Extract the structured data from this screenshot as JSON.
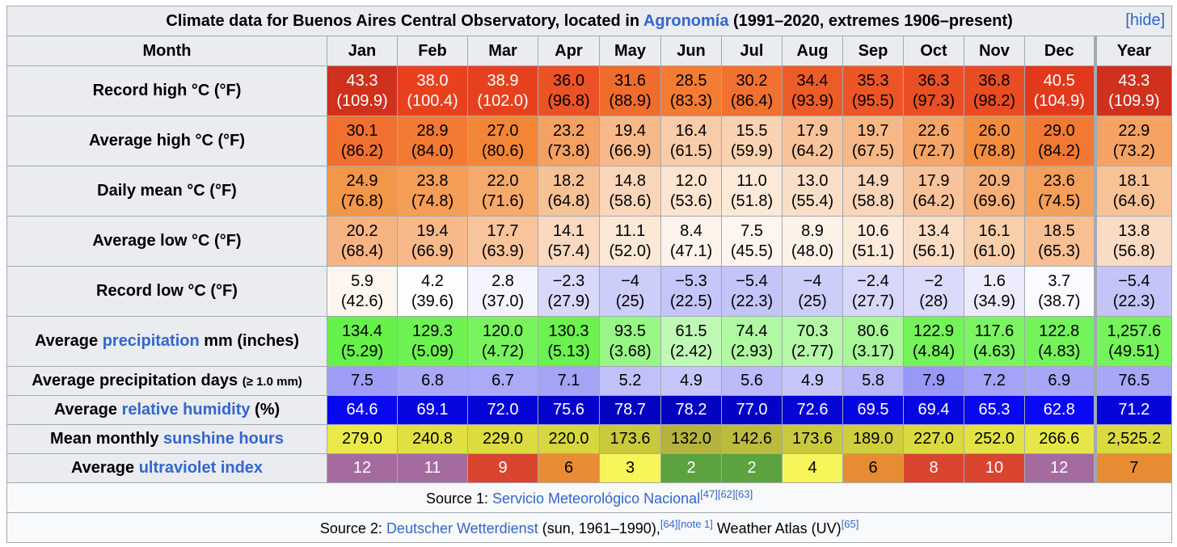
{
  "caption": {
    "text_before": "Climate data for Buenos Aires Central Observatory, located in ",
    "link": "Agronomía",
    "text_after": " (1991–2020, extremes 1906–present)",
    "hide": "[hide]"
  },
  "header": {
    "label": "Month",
    "months": [
      "Jan",
      "Feb",
      "Mar",
      "Apr",
      "May",
      "Jun",
      "Jul",
      "Aug",
      "Sep",
      "Oct",
      "Nov",
      "Dec"
    ],
    "year": "Year"
  },
  "rows": [
    {
      "id": "record-high",
      "label_pre": "Record high °C (°F)",
      "label_link": "",
      "label_post": "",
      "label_small": "",
      "cells": [
        {
          "c": "43.3",
          "f": "(109.9)",
          "bg": "#d0311c",
          "fg": "#ffffff"
        },
        {
          "c": "38.0",
          "f": "(100.4)",
          "bg": "#e9401e",
          "fg": "#ffffff"
        },
        {
          "c": "38.9",
          "f": "(102.0)",
          "bg": "#e6411e",
          "fg": "#ffffff"
        },
        {
          "c": "36.0",
          "f": "(96.8)",
          "bg": "#eb5225",
          "fg": "#000000"
        },
        {
          "c": "31.6",
          "f": "(88.9)",
          "bg": "#f06c2c",
          "fg": "#000000"
        },
        {
          "c": "28.5",
          "f": "(83.3)",
          "bg": "#f27c33",
          "fg": "#000000"
        },
        {
          "c": "30.2",
          "f": "(86.4)",
          "bg": "#f07130",
          "fg": "#000000"
        },
        {
          "c": "34.4",
          "f": "(93.9)",
          "bg": "#ec5c27",
          "fg": "#000000"
        },
        {
          "c": "35.3",
          "f": "(95.5)",
          "bg": "#ec5626",
          "fg": "#000000"
        },
        {
          "c": "36.3",
          "f": "(97.3)",
          "bg": "#ea4f24",
          "fg": "#000000"
        },
        {
          "c": "36.8",
          "f": "(98.2)",
          "bg": "#e94c23",
          "fg": "#000000"
        },
        {
          "c": "40.5",
          "f": "(104.9)",
          "bg": "#e2381c",
          "fg": "#ffffff"
        },
        {
          "c": "43.3",
          "f": "(109.9)",
          "bg": "#d0311c",
          "fg": "#ffffff"
        }
      ]
    },
    {
      "id": "average-high",
      "label_pre": "Average high °C (°F)",
      "label_link": "",
      "label_post": "",
      "label_small": "",
      "cells": [
        {
          "c": "30.1",
          "f": "(86.2)",
          "bg": "#f07030",
          "fg": "#000000"
        },
        {
          "c": "28.9",
          "f": "(84.0)",
          "bg": "#f27a33",
          "fg": "#000000"
        },
        {
          "c": "27.0",
          "f": "(80.6)",
          "bg": "#f28636",
          "fg": "#000000"
        },
        {
          "c": "23.2",
          "f": "(73.8)",
          "bg": "#f4a162",
          "fg": "#000000"
        },
        {
          "c": "19.4",
          "f": "(66.9)",
          "bg": "#f7b98a",
          "fg": "#000000"
        },
        {
          "c": "16.4",
          "f": "(61.5)",
          "bg": "#f8cca8",
          "fg": "#000000"
        },
        {
          "c": "15.5",
          "f": "(59.9)",
          "bg": "#f9d2b2",
          "fg": "#000000"
        },
        {
          "c": "17.9",
          "f": "(64.2)",
          "bg": "#f8c39a",
          "fg": "#000000"
        },
        {
          "c": "19.7",
          "f": "(67.5)",
          "bg": "#f7b887",
          "fg": "#000000"
        },
        {
          "c": "22.6",
          "f": "(72.7)",
          "bg": "#f5a567",
          "fg": "#000000"
        },
        {
          "c": "26.0",
          "f": "(78.8)",
          "bg": "#f38d3f",
          "fg": "#000000"
        },
        {
          "c": "29.0",
          "f": "(84.2)",
          "bg": "#f27933",
          "fg": "#000000"
        },
        {
          "c": "22.9",
          "f": "(73.2)",
          "bg": "#f5a365",
          "fg": "#000000"
        }
      ]
    },
    {
      "id": "daily-mean",
      "label_pre": "Daily mean °C (°F)",
      "label_link": "",
      "label_post": "",
      "label_small": "",
      "cells": [
        {
          "c": "24.9",
          "f": "(76.8)",
          "bg": "#f29648",
          "fg": "#000000"
        },
        {
          "c": "23.8",
          "f": "(74.8)",
          "bg": "#f49e58",
          "fg": "#000000"
        },
        {
          "c": "22.0",
          "f": "(71.6)",
          "bg": "#f5aa6c",
          "fg": "#000000"
        },
        {
          "c": "18.2",
          "f": "(64.8)",
          "bg": "#f7c196",
          "fg": "#000000"
        },
        {
          "c": "14.8",
          "f": "(58.6)",
          "bg": "#f9d6ba",
          "fg": "#000000"
        },
        {
          "c": "12.0",
          "f": "(53.6)",
          "bg": "#fbe4d0",
          "fg": "#000000"
        },
        {
          "c": "11.0",
          "f": "(51.8)",
          "bg": "#fce9d8",
          "fg": "#000000"
        },
        {
          "c": "13.0",
          "f": "(55.4)",
          "bg": "#fadfc8",
          "fg": "#000000"
        },
        {
          "c": "14.9",
          "f": "(58.8)",
          "bg": "#f9d5b9",
          "fg": "#000000"
        },
        {
          "c": "17.9",
          "f": "(64.2)",
          "bg": "#f8c39a",
          "fg": "#000000"
        },
        {
          "c": "20.9",
          "f": "(69.6)",
          "bg": "#f6b07a",
          "fg": "#000000"
        },
        {
          "c": "23.6",
          "f": "(74.5)",
          "bg": "#f49f5a",
          "fg": "#000000"
        },
        {
          "c": "18.1",
          "f": "(64.6)",
          "bg": "#f8c297",
          "fg": "#000000"
        }
      ]
    },
    {
      "id": "average-low",
      "label_pre": "Average low °C (°F)",
      "label_link": "",
      "label_post": "",
      "label_small": "",
      "cells": [
        {
          "c": "20.2",
          "f": "(68.4)",
          "bg": "#f6b482",
          "fg": "#000000"
        },
        {
          "c": "19.4",
          "f": "(66.9)",
          "bg": "#f7b98a",
          "fg": "#000000"
        },
        {
          "c": "17.7",
          "f": "(63.9)",
          "bg": "#f8c49c",
          "fg": "#000000"
        },
        {
          "c": "14.1",
          "f": "(57.4)",
          "bg": "#fad9c0",
          "fg": "#000000"
        },
        {
          "c": "11.1",
          "f": "(52.0)",
          "bg": "#fce8d7",
          "fg": "#000000"
        },
        {
          "c": "8.4",
          "f": "(47.1)",
          "bg": "#fdf3ea",
          "fg": "#000000"
        },
        {
          "c": "7.5",
          "f": "(45.5)",
          "bg": "#fdf5ee",
          "fg": "#000000"
        },
        {
          "c": "8.9",
          "f": "(48.0)",
          "bg": "#fdf2e8",
          "fg": "#000000"
        },
        {
          "c": "10.6",
          "f": "(51.1)",
          "bg": "#fceadb",
          "fg": "#000000"
        },
        {
          "c": "13.4",
          "f": "(56.1)",
          "bg": "#fbddc5",
          "fg": "#000000"
        },
        {
          "c": "16.1",
          "f": "(61.0)",
          "bg": "#f9ceab",
          "fg": "#000000"
        },
        {
          "c": "18.5",
          "f": "(65.3)",
          "bg": "#f7bf93",
          "fg": "#000000"
        },
        {
          "c": "13.8",
          "f": "(56.8)",
          "bg": "#fadbc3",
          "fg": "#000000"
        }
      ]
    },
    {
      "id": "record-low",
      "label_pre": "Record low °C (°F)",
      "label_link": "",
      "label_post": "",
      "label_small": "",
      "cells": [
        {
          "c": "5.9",
          "f": "(42.6)",
          "bg": "#fdf6ef",
          "fg": "#000000"
        },
        {
          "c": "4.2",
          "f": "(39.6)",
          "bg": "#fefefe",
          "fg": "#000000"
        },
        {
          "c": "2.8",
          "f": "(37.0)",
          "bg": "#f4f4fe",
          "fg": "#000000"
        },
        {
          "c": "−2.3",
          "f": "(27.9)",
          "bg": "#d8d8fb",
          "fg": "#000000"
        },
        {
          "c": "−4",
          "f": "(25)",
          "bg": "#cdcdfa",
          "fg": "#000000"
        },
        {
          "c": "−5.3",
          "f": "(22.5)",
          "bg": "#c5c5f9",
          "fg": "#000000"
        },
        {
          "c": "−5.4",
          "f": "(22.3)",
          "bg": "#c4c4f9",
          "fg": "#000000"
        },
        {
          "c": "−4",
          "f": "(25)",
          "bg": "#cdcdfa",
          "fg": "#000000"
        },
        {
          "c": "−2.4",
          "f": "(27.7)",
          "bg": "#d7d7fb",
          "fg": "#000000"
        },
        {
          "c": "−2",
          "f": "(28)",
          "bg": "#dadafb",
          "fg": "#000000"
        },
        {
          "c": "1.6",
          "f": "(34.9)",
          "bg": "#ececfd",
          "fg": "#000000"
        },
        {
          "c": "3.7",
          "f": "(38.7)",
          "bg": "#fbfbff",
          "fg": "#000000"
        },
        {
          "c": "−5.4",
          "f": "(22.3)",
          "bg": "#c4c4f9",
          "fg": "#000000"
        }
      ]
    },
    {
      "id": "average-precipitation",
      "label_pre": "Average ",
      "label_link": "precipitation",
      "label_post": " mm (inches)",
      "label_small": "",
      "cells": [
        {
          "c": "134.4",
          "f": "(5.29)",
          "bg": "#66f04a",
          "fg": "#000000"
        },
        {
          "c": "129.3",
          "f": "(5.09)",
          "bg": "#6df252",
          "fg": "#000000"
        },
        {
          "c": "120.0",
          "f": "(4.72)",
          "bg": "#78f35e",
          "fg": "#000000"
        },
        {
          "c": "130.3",
          "f": "(5.13)",
          "bg": "#6bf150",
          "fg": "#000000"
        },
        {
          "c": "93.5",
          "f": "(3.68)",
          "bg": "#98f686",
          "fg": "#000000"
        },
        {
          "c": "61.5",
          "f": "(2.42)",
          "bg": "#c0f9b5",
          "fg": "#000000"
        },
        {
          "c": "74.4",
          "f": "(2.93)",
          "bg": "#b0f8a2",
          "fg": "#000000"
        },
        {
          "c": "70.3",
          "f": "(2.77)",
          "bg": "#b5f8a8",
          "fg": "#000000"
        },
        {
          "c": "80.6",
          "f": "(3.17)",
          "bg": "#a8f798",
          "fg": "#000000"
        },
        {
          "c": "122.9",
          "f": "(4.84)",
          "bg": "#74f35a",
          "fg": "#000000"
        },
        {
          "c": "117.6",
          "f": "(4.63)",
          "bg": "#7bf461",
          "fg": "#000000"
        },
        {
          "c": "122.8",
          "f": "(4.83)",
          "bg": "#74f35a",
          "fg": "#000000"
        },
        {
          "c": "1,257.6",
          "f": "(49.51)",
          "bg": "#74f35a",
          "fg": "#000000"
        }
      ]
    },
    {
      "id": "precipitation-days",
      "label_pre": "Average precipitation days ",
      "label_link": "",
      "label_post": "",
      "label_small": "(≥ 1.0 mm)",
      "cells": [
        {
          "c": "7.5",
          "f": "",
          "bg": "#9e9ef7",
          "fg": "#000000"
        },
        {
          "c": "6.8",
          "f": "",
          "bg": "#a9a9f8",
          "fg": "#000000"
        },
        {
          "c": "6.7",
          "f": "",
          "bg": "#aaaaf8",
          "fg": "#000000"
        },
        {
          "c": "7.1",
          "f": "",
          "bg": "#a4a4f7",
          "fg": "#000000"
        },
        {
          "c": "5.2",
          "f": "",
          "bg": "#c1c1fa",
          "fg": "#000000"
        },
        {
          "c": "4.9",
          "f": "",
          "bg": "#c6c6fa",
          "fg": "#000000"
        },
        {
          "c": "5.6",
          "f": "",
          "bg": "#bbbbf9",
          "fg": "#000000"
        },
        {
          "c": "4.9",
          "f": "",
          "bg": "#c6c6fa",
          "fg": "#000000"
        },
        {
          "c": "5.8",
          "f": "",
          "bg": "#b8b8f9",
          "fg": "#000000"
        },
        {
          "c": "7.9",
          "f": "",
          "bg": "#9898f6",
          "fg": "#000000"
        },
        {
          "c": "7.2",
          "f": "",
          "bg": "#a3a3f7",
          "fg": "#000000"
        },
        {
          "c": "6.9",
          "f": "",
          "bg": "#a7a7f8",
          "fg": "#000000"
        },
        {
          "c": "76.5",
          "f": "",
          "bg": "#a7a7f8",
          "fg": "#000000"
        }
      ]
    },
    {
      "id": "relative-humidity",
      "label_pre": "Average ",
      "label_link": "relative humidity",
      "label_post": " (%)",
      "label_small": "",
      "cells": [
        {
          "c": "64.6",
          "f": "",
          "bg": "#0808f0",
          "fg": "#ffffff"
        },
        {
          "c": "69.1",
          "f": "",
          "bg": "#0606e0",
          "fg": "#ffffff"
        },
        {
          "c": "72.0",
          "f": "",
          "bg": "#0505d8",
          "fg": "#ffffff"
        },
        {
          "c": "75.6",
          "f": "",
          "bg": "#0404cc",
          "fg": "#ffffff"
        },
        {
          "c": "78.7",
          "f": "",
          "bg": "#0303c0",
          "fg": "#ffffff"
        },
        {
          "c": "78.2",
          "f": "",
          "bg": "#0303c2",
          "fg": "#ffffff"
        },
        {
          "c": "77.0",
          "f": "",
          "bg": "#0303c6",
          "fg": "#ffffff"
        },
        {
          "c": "72.6",
          "f": "",
          "bg": "#0505d6",
          "fg": "#ffffff"
        },
        {
          "c": "69.5",
          "f": "",
          "bg": "#0606e0",
          "fg": "#ffffff"
        },
        {
          "c": "69.4",
          "f": "",
          "bg": "#0606e0",
          "fg": "#ffffff"
        },
        {
          "c": "65.3",
          "f": "",
          "bg": "#0808ee",
          "fg": "#ffffff"
        },
        {
          "c": "62.8",
          "f": "",
          "bg": "#0909f5",
          "fg": "#ffffff"
        },
        {
          "c": "71.2",
          "f": "",
          "bg": "#0505da",
          "fg": "#ffffff"
        }
      ]
    },
    {
      "id": "sunshine-hours",
      "label_pre": "Mean monthly ",
      "label_link": "sunshine hours",
      "label_post": "",
      "label_small": "",
      "cells": [
        {
          "c": "279.0",
          "f": "",
          "bg": "#e9e94a",
          "fg": "#000000"
        },
        {
          "c": "240.8",
          "f": "",
          "bg": "#e0e042",
          "fg": "#000000"
        },
        {
          "c": "229.0",
          "f": "",
          "bg": "#dcdc40",
          "fg": "#000000"
        },
        {
          "c": "220.0",
          "f": "",
          "bg": "#d6d63e",
          "fg": "#000000"
        },
        {
          "c": "173.6",
          "f": "",
          "bg": "#c9c93e",
          "fg": "#000000"
        },
        {
          "c": "132.0",
          "f": "",
          "bg": "#b3b33d",
          "fg": "#000000"
        },
        {
          "c": "142.6",
          "f": "",
          "bg": "#bbbb3e",
          "fg": "#000000"
        },
        {
          "c": "173.6",
          "f": "",
          "bg": "#c9c93e",
          "fg": "#000000"
        },
        {
          "c": "189.0",
          "f": "",
          "bg": "#cece3e",
          "fg": "#000000"
        },
        {
          "c": "227.0",
          "f": "",
          "bg": "#dada40",
          "fg": "#000000"
        },
        {
          "c": "252.0",
          "f": "",
          "bg": "#e2e244",
          "fg": "#000000"
        },
        {
          "c": "266.6",
          "f": "",
          "bg": "#e6e648",
          "fg": "#000000"
        },
        {
          "c": "2,525.2",
          "f": "",
          "bg": "#dada40",
          "fg": "#000000"
        }
      ]
    },
    {
      "id": "ultraviolet-index",
      "label_pre": "Average ",
      "label_link": "ultraviolet index",
      "label_post": "",
      "label_small": "",
      "cells": [
        {
          "c": "12",
          "f": "",
          "bg": "#a66b9e",
          "fg": "#ffffff"
        },
        {
          "c": "11",
          "f": "",
          "bg": "#a66b9e",
          "fg": "#ffffff"
        },
        {
          "c": "9",
          "f": "",
          "bg": "#d9452f",
          "fg": "#ffffff"
        },
        {
          "c": "6",
          "f": "",
          "bg": "#e88c34",
          "fg": "#000000"
        },
        {
          "c": "3",
          "f": "",
          "bg": "#f6f65a",
          "fg": "#000000"
        },
        {
          "c": "2",
          "f": "",
          "bg": "#5ca23e",
          "fg": "#ffffff"
        },
        {
          "c": "2",
          "f": "",
          "bg": "#5ca23e",
          "fg": "#ffffff"
        },
        {
          "c": "4",
          "f": "",
          "bg": "#f6f65a",
          "fg": "#000000"
        },
        {
          "c": "6",
          "f": "",
          "bg": "#e88c34",
          "fg": "#000000"
        },
        {
          "c": "8",
          "f": "",
          "bg": "#d9452f",
          "fg": "#ffffff"
        },
        {
          "c": "10",
          "f": "",
          "bg": "#d9452f",
          "fg": "#ffffff"
        },
        {
          "c": "12",
          "f": "",
          "bg": "#a66b9e",
          "fg": "#ffffff"
        },
        {
          "c": "7",
          "f": "",
          "bg": "#e88c34",
          "fg": "#000000"
        }
      ]
    }
  ],
  "sources": {
    "s1_prefix": "Source 1: ",
    "s1_link": "Servicio Meteorológico Nacional",
    "s1_refs": "[47][62][63]",
    "s2_prefix": "Source 2: ",
    "s2_link": "Deutscher Wetterdienst",
    "s2_mid": " (sun, 1961–1990),",
    "s2_refs": "[64][note 1]",
    "s2_text": " Weather Atlas (UV)",
    "s2_refs2": "[65]"
  }
}
